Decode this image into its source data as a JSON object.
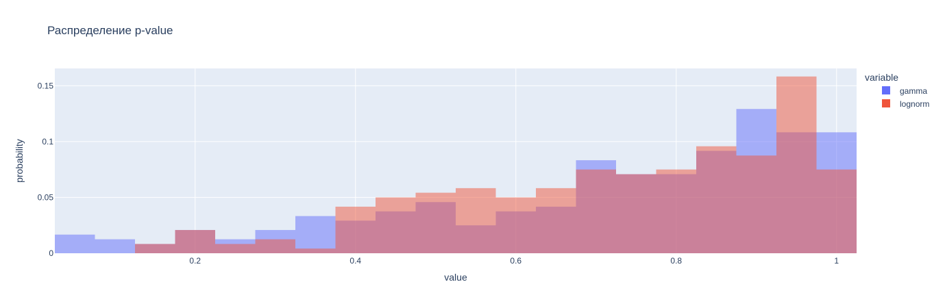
{
  "chart_data": {
    "type": "bar",
    "title": "Распределение p-value",
    "xlabel": "value",
    "ylabel": "probability",
    "xlim": [
      0.025,
      1.025
    ],
    "ylim": [
      0,
      0.1655
    ],
    "xticks": [
      {
        "value": 0.2,
        "label": "0.2"
      },
      {
        "value": 0.4,
        "label": "0.4"
      },
      {
        "value": 0.6,
        "label": "0.6"
      },
      {
        "value": 0.8,
        "label": "0.8"
      },
      {
        "value": 1.0,
        "label": "1"
      }
    ],
    "yticks": [
      {
        "value": 0,
        "label": "0"
      },
      {
        "value": 0.05,
        "label": "0.05"
      },
      {
        "value": 0.1,
        "label": "0.1"
      },
      {
        "value": 0.15,
        "label": "0.15"
      }
    ],
    "grid": true,
    "bin_width": 0.05,
    "bin_starts": [
      0.025,
      0.075,
      0.125,
      0.175,
      0.225,
      0.275,
      0.325,
      0.375,
      0.425,
      0.475,
      0.525,
      0.575,
      0.625,
      0.675,
      0.725,
      0.775,
      0.825,
      0.875,
      0.925,
      0.975
    ],
    "legend_title": "variable",
    "legend_position": "right",
    "series": [
      {
        "name": "gamma",
        "color": "#636efa",
        "values": [
          0.0167,
          0.0125,
          0.0083,
          0.0208,
          0.0125,
          0.0208,
          0.0333,
          0.0292,
          0.0375,
          0.0458,
          0.025,
          0.0375,
          0.0417,
          0.0833,
          0.0708,
          0.0708,
          0.0917,
          0.1292,
          0.1083,
          0.1083
        ]
      },
      {
        "name": "lognorm",
        "color": "#ef553b",
        "values": [
          0,
          0,
          0.0083,
          0.0208,
          0.0083,
          0.0125,
          0.0042,
          0.0417,
          0.05,
          0.0542,
          0.0583,
          0.05,
          0.0583,
          0.075,
          0.0708,
          0.075,
          0.0958,
          0.0875,
          0.1583,
          0.075
        ]
      }
    ]
  }
}
